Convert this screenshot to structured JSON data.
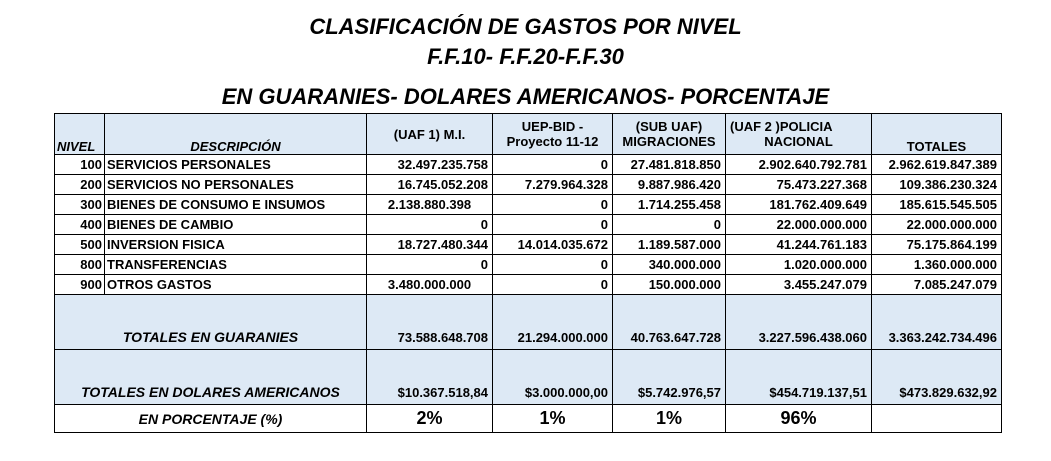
{
  "titles": {
    "line1": "CLASIFICACIÓN DE GASTOS POR NIVEL",
    "line2": "F.F.10- F.F.20-F.F.30",
    "line3": "EN GUARANIES- DOLARES AMERICANOS- PORCENTAJE"
  },
  "headers": {
    "nivel": "NIVEL",
    "descripcion": "DESCRIPCIÓN",
    "uaf1": "(UAF 1)  M.I.",
    "uep_top": "UEP-BID -",
    "uep_bottom": "Proyecto 11-12",
    "subuaf_top": "(SUB UAF)",
    "subuaf_bottom": "MIGRACIONES",
    "uaf2_top": "(UAF 2 )POLICIA",
    "uaf2_bottom": "NACIONAL",
    "totales": "TOTALES"
  },
  "rows": [
    {
      "nivel": "100",
      "desc": "SERVICIOS PERSONALES",
      "uaf1": "32.497.235.758",
      "uep": "0",
      "sub": "27.481.818.850",
      "uaf2": "2.902.640.792.781",
      "total": "2.962.619.847.389"
    },
    {
      "nivel": "200",
      "desc": "SERVICIOS NO PERSONALES",
      "uaf1": "16.745.052.208",
      "uep": "7.279.964.328",
      "sub": "9.887.986.420",
      "uaf2": "75.473.227.368",
      "total": "109.386.230.324"
    },
    {
      "nivel": "300",
      "desc": "BIENES DE CONSUMO E INSUMOS",
      "uaf1": "2.138.880.398",
      "uep": "0",
      "sub": "1.714.255.458",
      "uaf2": "181.762.409.649",
      "total": "185.615.545.505"
    },
    {
      "nivel": "400",
      "desc": "BIENES DE CAMBIO",
      "uaf1": "0",
      "uep": "0",
      "sub": "0",
      "uaf2": "22.000.000.000",
      "total": "22.000.000.000"
    },
    {
      "nivel": "500",
      "desc": "INVERSION FISICA",
      "uaf1": "18.727.480.344",
      "uep": "14.014.035.672",
      "sub": "1.189.587.000",
      "uaf2": "41.244.761.183",
      "total": "75.175.864.199"
    },
    {
      "nivel": "800",
      "desc": "TRANSFERENCIAS",
      "uaf1": "0",
      "uep": "0",
      "sub": "340.000.000",
      "uaf2": "1.020.000.000",
      "total": "1.360.000.000"
    },
    {
      "nivel": "900",
      "desc": "OTROS GASTOS",
      "uaf1": "3.480.000.000",
      "uep": "0",
      "sub": "150.000.000",
      "uaf2": "3.455.247.079",
      "total": "7.085.247.079"
    }
  ],
  "totales_guaranies": {
    "label": "TOTALES EN GUARANIES",
    "uaf1": "73.588.648.708",
    "uep": "21.294.000.000",
    "sub": "40.763.647.728",
    "uaf2": "3.227.596.438.060",
    "total": "3.363.242.734.496"
  },
  "totales_dolares": {
    "label": "TOTALES EN DOLARES AMERICANOS",
    "uaf1": "$10.367.518,84",
    "uep": "$3.000.000,00",
    "sub": "$5.742.976,57",
    "uaf2": "$454.719.137,51",
    "total": "$473.829.632,92"
  },
  "porcentaje": {
    "label": "EN PORCENTAJE (%)",
    "uaf1": "2%",
    "uep": "1%",
    "sub": "1%",
    "uaf2": "96%",
    "total": ""
  }
}
